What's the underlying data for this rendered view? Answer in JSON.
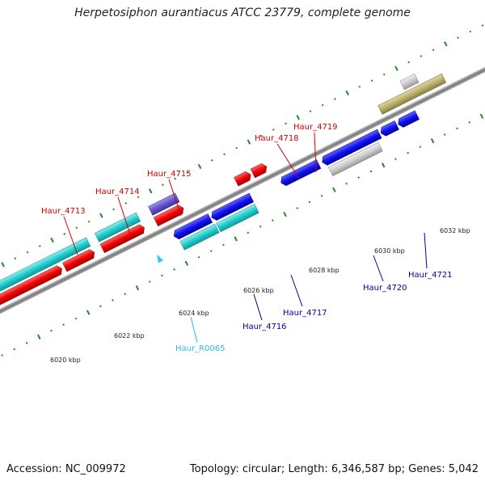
{
  "title": "Herpetosiphon aurantiacus ATCC 23779, complete genome",
  "footer": {
    "accession": "Accession: NC_009972",
    "summary": "Topology: circular; Length: 6,346,587 bp; Genes: 5,042"
  },
  "colors": {
    "forward_label": "#cc0000",
    "reverse_label": "#000099",
    "rna_label": "#33bbdd",
    "backbone": "#8a8a8a",
    "tick": "#228822"
  },
  "ticks": [
    "6020 kbp",
    "6022 kbp",
    "6024 kbp",
    "6026 kbp",
    "6028 kbp",
    "6030 kbp",
    "6032 kbp"
  ],
  "labels": {
    "h4713": "Haur_4713",
    "h4714": "Haur_4714",
    "h4715": "Haur_4715",
    "h4718": "Haur_4718",
    "h4719": "Haur_4719",
    "h4716": "Haur_4716",
    "h4717": "Haur_4717",
    "h4720": "Haur_4720",
    "h4721": "Haur_4721",
    "hR0065": "Haur_R0065"
  }
}
